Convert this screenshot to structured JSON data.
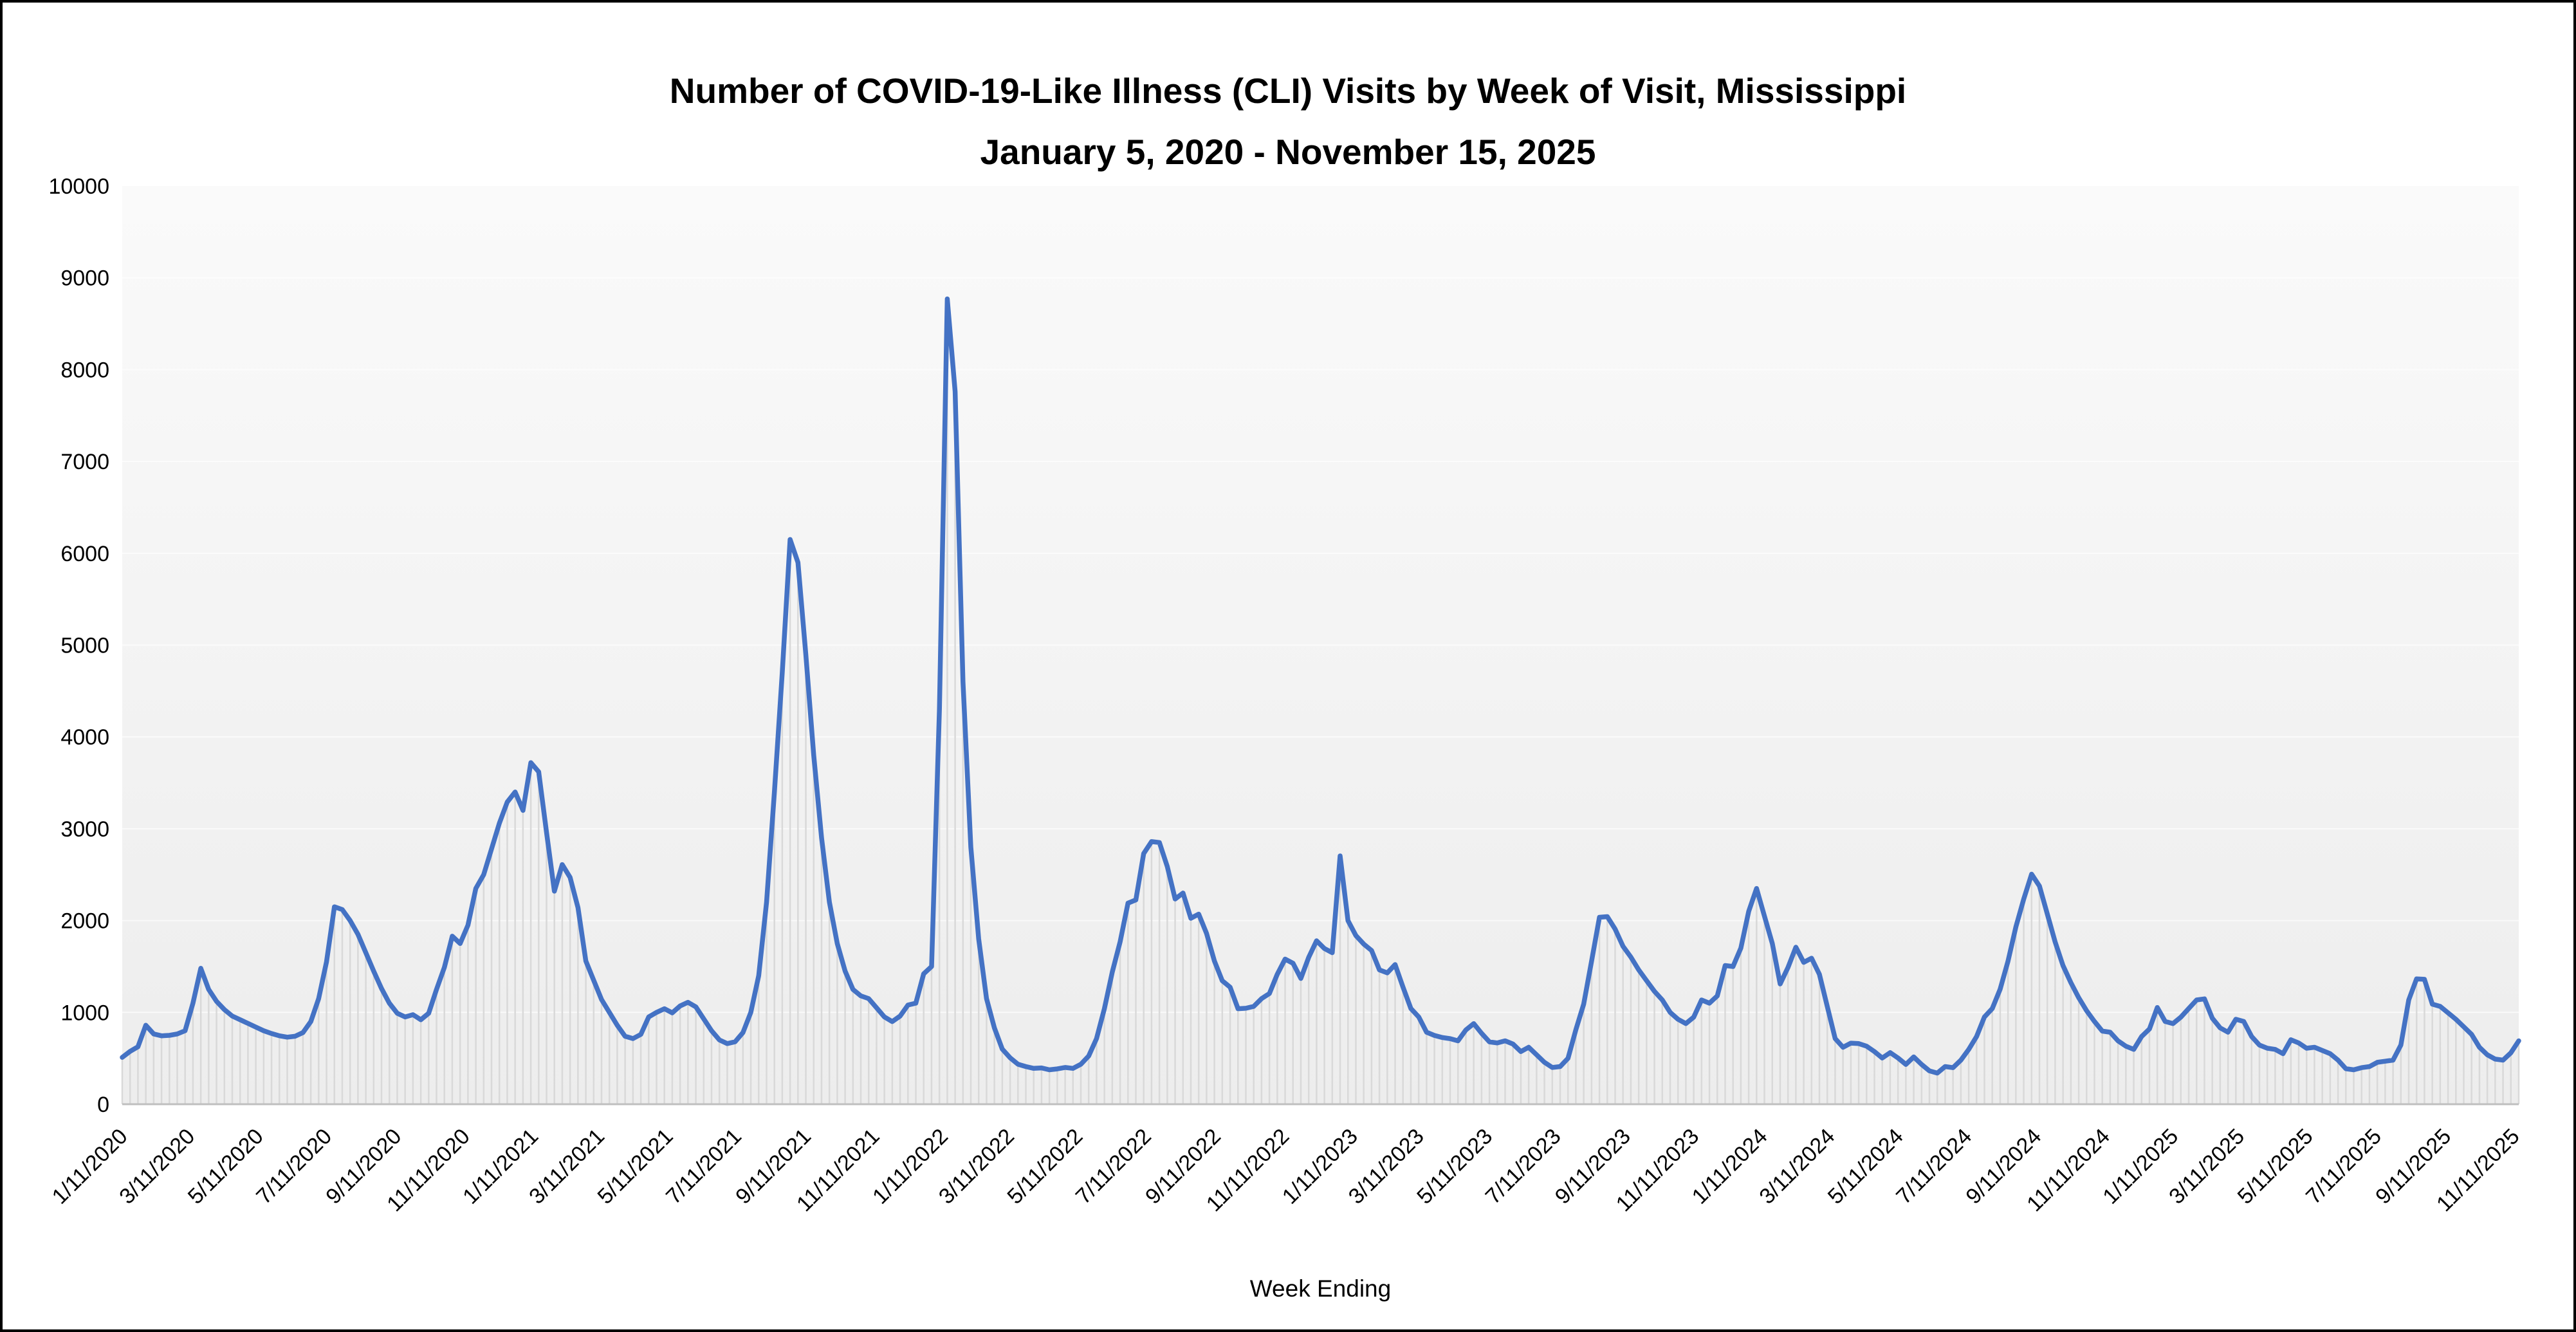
{
  "title": {
    "line1": "Number of COVID-19-Like Illness (CLI) Visits by Week of Visit, Mississippi",
    "line2": "January 5, 2020 - November 15, 2025"
  },
  "x_axis": {
    "title": "Week Ending",
    "tick_labels": [
      "1/11/2020",
      "3/11/2020",
      "5/11/2020",
      "7/11/2020",
      "9/11/2020",
      "11/11/2020",
      "1/11/2021",
      "3/11/2021",
      "5/11/2021",
      "7/11/2021",
      "9/11/2021",
      "11/11/2021",
      "1/11/2022",
      "3/11/2022",
      "5/11/2022",
      "7/11/2022",
      "9/11/2022",
      "11/11/2022",
      "1/11/2023",
      "3/11/2023",
      "5/11/2023",
      "7/11/2023",
      "9/11/2023",
      "11/11/2023",
      "1/11/2024",
      "3/11/2024",
      "5/11/2024",
      "7/11/2024",
      "9/11/2024",
      "11/11/2024",
      "1/11/2025",
      "3/11/2025",
      "5/11/2025",
      "7/11/2025",
      "9/11/2025",
      "11/11/2025"
    ]
  },
  "y_axis": {
    "min": 0,
    "max": 10000,
    "step": 1000,
    "tick_labels": [
      "0",
      "1000",
      "2000",
      "3000",
      "4000",
      "5000",
      "6000",
      "7000",
      "8000",
      "9000",
      "10000"
    ]
  },
  "colors": {
    "line": "#4472C4",
    "drop_line": "#D9D9D9",
    "axis_line": "#BFBFBF",
    "gridline": "#FFFFFF",
    "plot_bg_top": "#FAFAFA",
    "plot_bg_bottom": "#EDEDED",
    "text": "#000000",
    "border": "#000000"
  },
  "chart_data": {
    "type": "line",
    "title": "Number of COVID-19-Like Illness (CLI) Visits by Week of Visit, Mississippi January 5, 2020 - November 15, 2025",
    "xlabel": "Week Ending",
    "ylabel": "",
    "ylim": [
      0,
      10000
    ],
    "grid": "horizontal-faint",
    "legend": "none",
    "marker": "none",
    "drop_lines": true,
    "cadence": "weekly",
    "first_week_ending": "1/11/2020",
    "last_week_ending": "11/15/2025",
    "series_name": "CLI visits",
    "values": [
      510,
      575,
      625,
      860,
      765,
      745,
      750,
      765,
      800,
      1100,
      1480,
      1250,
      1120,
      1030,
      960,
      920,
      880,
      840,
      800,
      770,
      745,
      730,
      740,
      780,
      900,
      1150,
      1550,
      2150,
      2120,
      2000,
      1850,
      1650,
      1450,
      1260,
      1100,
      990,
      950,
      975,
      920,
      990,
      1250,
      1490,
      1830,
      1750,
      1950,
      2350,
      2500,
      2780,
      3060,
      3290,
      3400,
      3200,
      3720,
      3620,
      2960,
      2320,
      2610,
      2470,
      2140,
      1560,
      1350,
      1140,
      1000,
      860,
      740,
      715,
      760,
      950,
      1000,
      1040,
      995,
      1070,
      1110,
      1060,
      930,
      800,
      700,
      660,
      680,
      780,
      1000,
      1400,
      2200,
      3400,
      4700,
      6150,
      5900,
      4900,
      3800,
      2900,
      2200,
      1750,
      1450,
      1250,
      1180,
      1150,
      1050,
      950,
      900,
      960,
      1080,
      1100,
      1420,
      1500,
      4300,
      8770,
      7760,
      4600,
      2800,
      1800,
      1150,
      830,
      600,
      505,
      435,
      410,
      390,
      395,
      375,
      385,
      400,
      390,
      435,
      525,
      715,
      1040,
      1440,
      1770,
      2190,
      2225,
      2730,
      2860,
      2850,
      2590,
      2235,
      2300,
      2025,
      2070,
      1860,
      1560,
      1345,
      1275,
      1040,
      1045,
      1065,
      1150,
      1205,
      1415,
      1580,
      1535,
      1370,
      1600,
      1780,
      1695,
      1650,
      2704,
      2000,
      1837,
      1744,
      1674,
      1463,
      1430,
      1521,
      1276,
      1042,
      950,
      784,
      749,
      726,
      714,
      690,
      808,
      878,
      772,
      679,
      667,
      690,
      655,
      573,
      620,
      538,
      456,
      400,
      410,
      500,
      810,
      1090,
      1560,
      2036,
      2043,
      1907,
      1720,
      1603,
      1463,
      1346,
      1229,
      1135,
      1000,
      925,
      878,
      948,
      1135,
      1100,
      1180,
      1510,
      1500,
      1700,
      2100,
      2350,
      2050,
      1750,
      1310,
      1490,
      1710,
      1545,
      1590,
      1415,
      1065,
      715,
      620,
      665,
      660,
      632,
      573,
      503,
      562,
      503,
      433,
      515,
      433,
      363,
      339,
      410,
      398,
      480,
      597,
      737,
      950,
      1042,
      1252,
      1557,
      1931,
      2235,
      2505,
      2376,
      2072,
      1767,
      1510,
      1323,
      1159,
      1018,
      901,
      796,
      784,
      690,
      632,
      597,
      737,
      819,
      1053,
      901,
      878,
      948,
      1042,
      1135,
      1147,
      936,
      831,
      784,
      925,
      901,
      737,
      644,
      610,
      597,
      550,
      702,
      667,
      610,
      620,
      585,
      550,
      480,
      386,
      375,
      398,
      410,
      456,
      468,
      480,
      645,
      1135,
      1365,
      1360,
      1090,
      1065,
      995,
      925,
      843,
      760,
      620,
      538,
      491,
      480,
      560,
      690
    ]
  }
}
